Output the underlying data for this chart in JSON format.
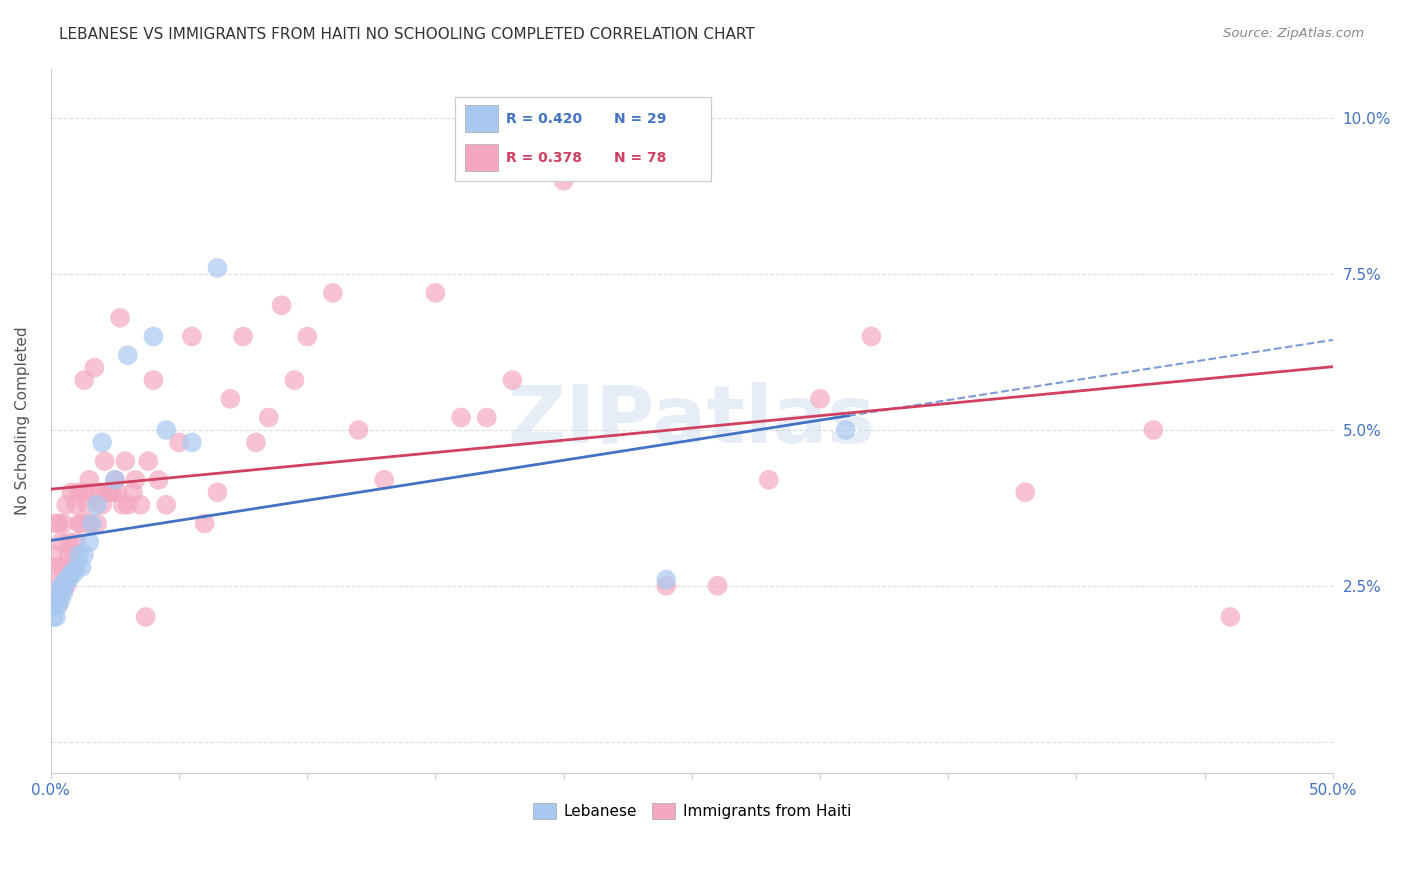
{
  "title": "LEBANESE VS IMMIGRANTS FROM HAITI NO SCHOOLING COMPLETED CORRELATION CHART",
  "source": "Source: ZipAtlas.com",
  "ylabel": "No Schooling Completed",
  "xlim": [
    0.0,
    0.5
  ],
  "ylim": [
    -0.005,
    0.108
  ],
  "xticks": [
    0.0,
    0.05,
    0.1,
    0.15,
    0.2,
    0.25,
    0.3,
    0.35,
    0.4,
    0.45,
    0.5
  ],
  "yticks": [
    0.0,
    0.025,
    0.05,
    0.075,
    0.1
  ],
  "ytick_labels_right": [
    "",
    "2.5%",
    "5.0%",
    "7.5%",
    "10.0%"
  ],
  "xtick_labels_show": [
    "0.0%",
    "50.0%"
  ],
  "xtick_show_positions": [
    0.0,
    0.5
  ],
  "background_color": "#ffffff",
  "grid_color": "#dddddd",
  "watermark": "ZIPatlas",
  "legend_r1": "R = 0.420",
  "legend_n1": "N = 29",
  "legend_r2": "R = 0.378",
  "legend_n2": "N = 78",
  "color_lebanese": "#a8c8f0",
  "color_haiti": "#f4a8c0",
  "color_line_lebanese": "#4472c4",
  "color_line_haiti": "#d04060",
  "lebanese_x": [
    0.001,
    0.002,
    0.002,
    0.003,
    0.003,
    0.004,
    0.004,
    0.005,
    0.005,
    0.006,
    0.007,
    0.008,
    0.009,
    0.01,
    0.011,
    0.012,
    0.013,
    0.015,
    0.016,
    0.018,
    0.02,
    0.025,
    0.03,
    0.04,
    0.045,
    0.055,
    0.065,
    0.24,
    0.31
  ],
  "lebanese_y": [
    0.02,
    0.02,
    0.022,
    0.022,
    0.024,
    0.023,
    0.025,
    0.024,
    0.025,
    0.026,
    0.026,
    0.027,
    0.027,
    0.028,
    0.03,
    0.028,
    0.03,
    0.032,
    0.035,
    0.038,
    0.048,
    0.042,
    0.062,
    0.065,
    0.05,
    0.048,
    0.076,
    0.026,
    0.05
  ],
  "haiti_x": [
    0.001,
    0.001,
    0.002,
    0.002,
    0.003,
    0.003,
    0.004,
    0.004,
    0.005,
    0.005,
    0.006,
    0.006,
    0.007,
    0.007,
    0.008,
    0.008,
    0.009,
    0.01,
    0.01,
    0.011,
    0.011,
    0.012,
    0.013,
    0.013,
    0.014,
    0.015,
    0.015,
    0.016,
    0.017,
    0.018,
    0.019,
    0.02,
    0.021,
    0.022,
    0.023,
    0.024,
    0.025,
    0.026,
    0.027,
    0.028,
    0.029,
    0.03,
    0.032,
    0.033,
    0.035,
    0.037,
    0.038,
    0.04,
    0.042,
    0.045,
    0.05,
    0.055,
    0.06,
    0.065,
    0.07,
    0.075,
    0.08,
    0.085,
    0.09,
    0.095,
    0.1,
    0.11,
    0.12,
    0.13,
    0.15,
    0.16,
    0.17,
    0.18,
    0.2,
    0.22,
    0.24,
    0.26,
    0.28,
    0.3,
    0.32,
    0.38,
    0.43,
    0.46
  ],
  "haiti_y": [
    0.025,
    0.03,
    0.028,
    0.035,
    0.022,
    0.035,
    0.028,
    0.032,
    0.025,
    0.035,
    0.025,
    0.038,
    0.03,
    0.032,
    0.028,
    0.04,
    0.03,
    0.032,
    0.038,
    0.04,
    0.035,
    0.035,
    0.04,
    0.058,
    0.038,
    0.035,
    0.042,
    0.04,
    0.06,
    0.035,
    0.04,
    0.038,
    0.045,
    0.04,
    0.04,
    0.04,
    0.042,
    0.04,
    0.068,
    0.038,
    0.045,
    0.038,
    0.04,
    0.042,
    0.038,
    0.02,
    0.045,
    0.058,
    0.042,
    0.038,
    0.048,
    0.065,
    0.035,
    0.04,
    0.055,
    0.065,
    0.048,
    0.052,
    0.07,
    0.058,
    0.065,
    0.072,
    0.05,
    0.042,
    0.072,
    0.052,
    0.052,
    0.058,
    0.09,
    0.092,
    0.025,
    0.025,
    0.042,
    0.055,
    0.065,
    0.04,
    0.05,
    0.02
  ]
}
